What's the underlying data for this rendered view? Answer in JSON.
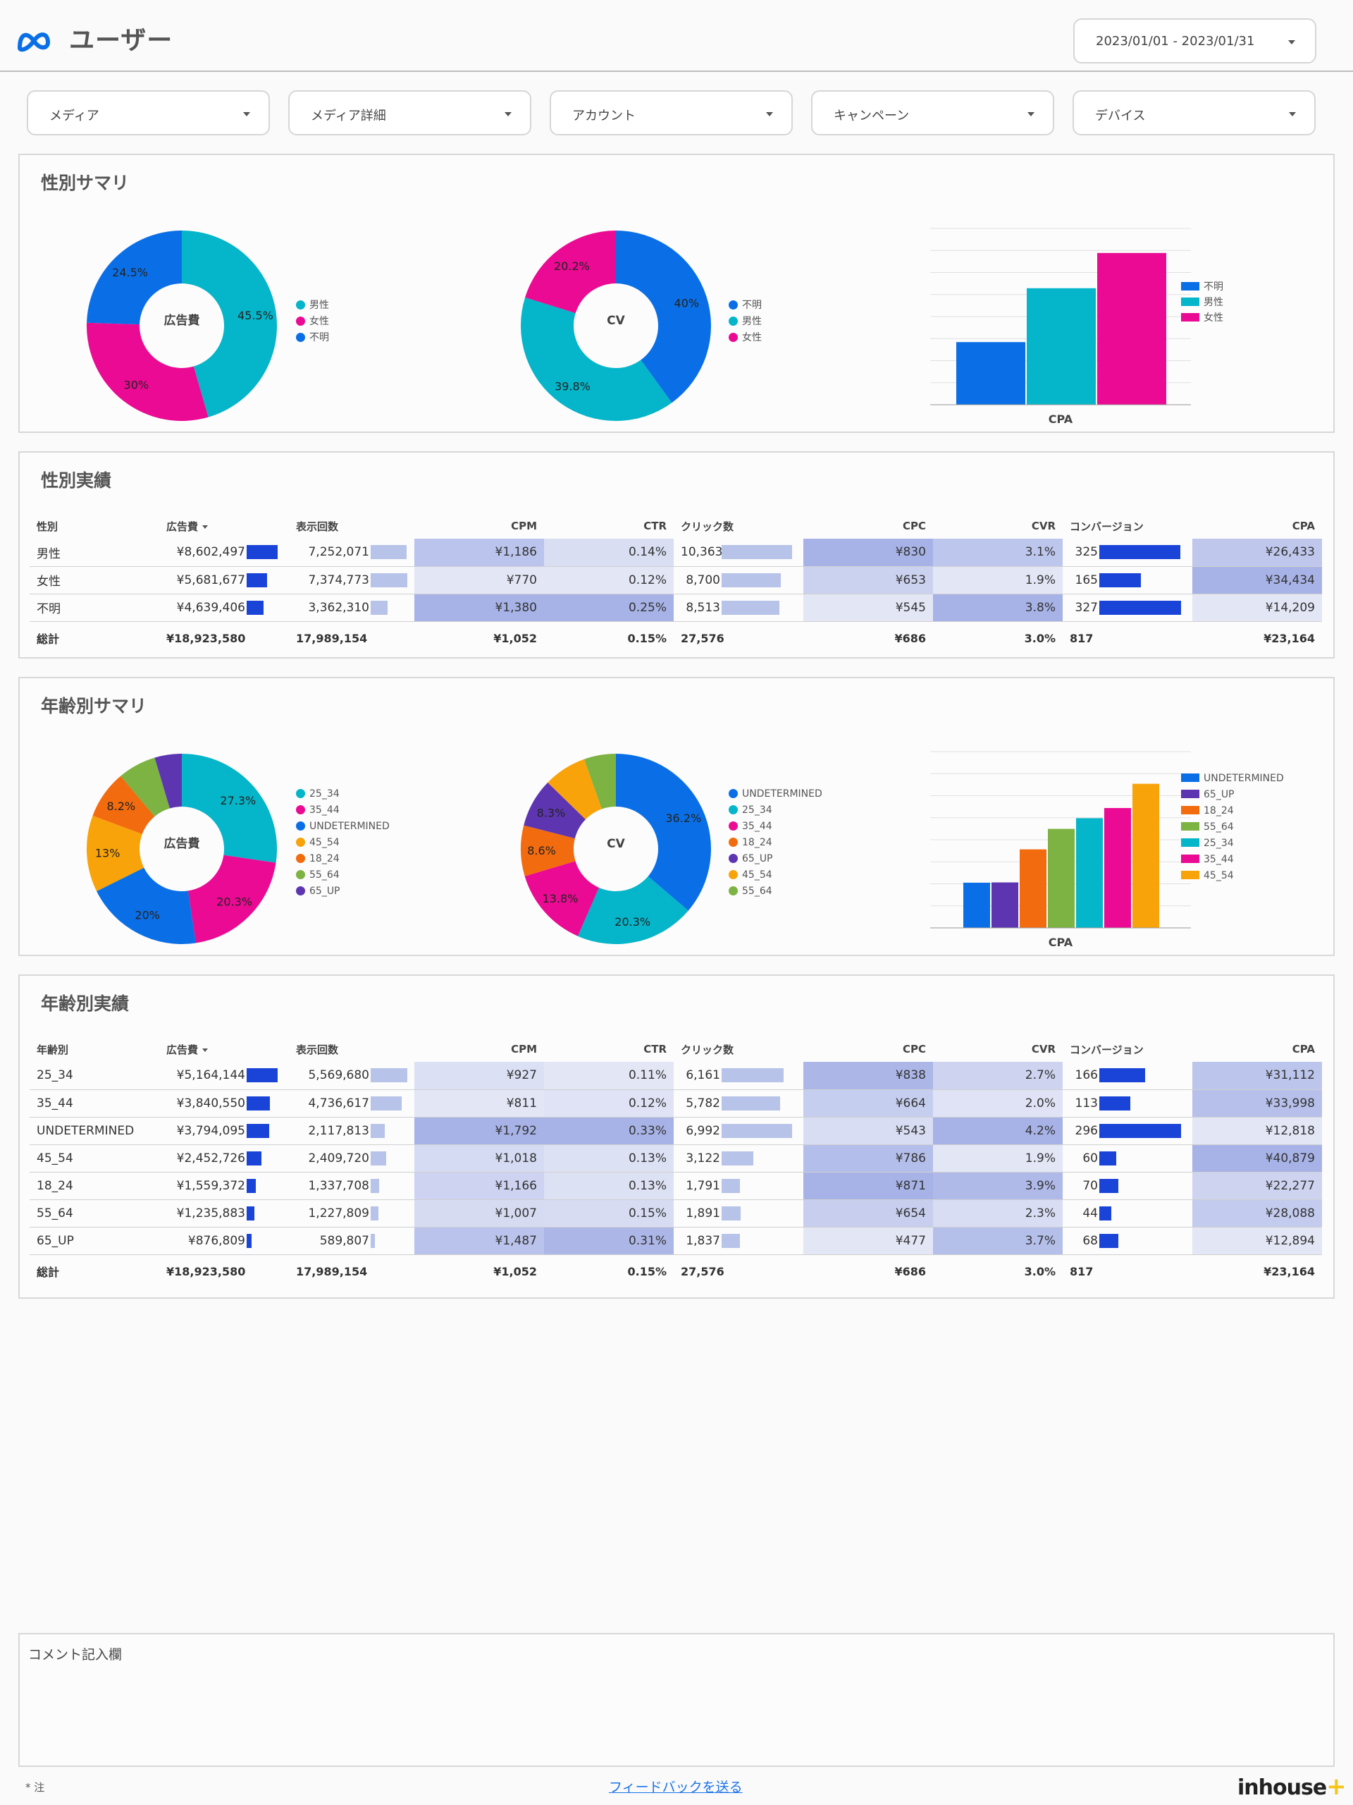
{
  "header": {
    "title": "ユーザー",
    "date_range": "2023/01/01 - 2023/01/31"
  },
  "filters": [
    "メディア",
    "メディア詳細",
    "アカウント",
    "キャンペーン",
    "デバイス"
  ],
  "colors": {
    "blue": "#0a6fe6",
    "teal": "#05b5c9",
    "pink": "#eb0a93",
    "green": "#7cb342",
    "orange": "#f26b0f",
    "purple": "#5e35b1",
    "amber": "#f9a30a",
    "bar_dark": "#1a44d8",
    "bar_light": "#b7c3e8"
  },
  "gender_summary": {
    "title": "性別サマリ",
    "donut1": {
      "center": "広告費",
      "legend": [
        "男性",
        "女性",
        "不明"
      ],
      "labels": [
        "45.5%",
        "30%",
        "24.5%"
      ]
    },
    "donut2": {
      "center": "CV",
      "legend": [
        "不明",
        "男性",
        "女性"
      ],
      "labels": [
        "40%",
        "39.8%",
        "20.2%"
      ]
    },
    "bar": {
      "xlabel": "CPA",
      "legend": [
        "不明",
        "男性",
        "女性"
      ]
    }
  },
  "gender_table": {
    "title": "性別実績",
    "headers": [
      "性別",
      "広告費",
      "表示回数",
      "CPM",
      "CTR",
      "クリック数",
      "CPC",
      "CVR",
      "コンバージョン",
      "CPA"
    ],
    "rows": [
      [
        "男性",
        "¥8,602,497",
        "7,252,071",
        "¥1,186",
        "0.14%",
        "10,363",
        "¥830",
        "3.1%",
        "325",
        "¥26,433"
      ],
      [
        "女性",
        "¥5,681,677",
        "7,374,773",
        "¥770",
        "0.12%",
        "8,700",
        "¥653",
        "1.9%",
        "165",
        "¥34,434"
      ],
      [
        "不明",
        "¥4,639,406",
        "3,362,310",
        "¥1,380",
        "0.25%",
        "8,513",
        "¥545",
        "3.8%",
        "327",
        "¥14,209"
      ]
    ],
    "total": [
      "総計",
      "¥18,923,580",
      "17,989,154",
      "¥1,052",
      "0.15%",
      "27,576",
      "¥686",
      "3.0%",
      "817",
      "¥23,164"
    ]
  },
  "age_summary": {
    "title": "年齢別サマリ",
    "donut1": {
      "center": "広告費",
      "legend": [
        "25_34",
        "35_44",
        "UNDETERMINED",
        "45_54",
        "18_24",
        "55_64",
        "65_UP"
      ],
      "labels": [
        "27.3%",
        "20.3%",
        "20%",
        "13%",
        "8.2%"
      ]
    },
    "donut2": {
      "center": "CV",
      "legend": [
        "UNDETERMINED",
        "25_34",
        "35_44",
        "18_24",
        "65_UP",
        "45_54",
        "55_64"
      ],
      "labels": [
        "36.2%",
        "20.3%",
        "13.8%",
        "8.6%",
        "8.3%"
      ]
    },
    "bar": {
      "xlabel": "CPA",
      "legend": [
        "UNDETERMINED",
        "65_UP",
        "18_24",
        "55_64",
        "25_34",
        "35_44",
        "45_54"
      ]
    }
  },
  "age_table": {
    "title": "年齢別実績",
    "headers": [
      "年齢別",
      "広告費",
      "表示回数",
      "CPM",
      "CTR",
      "クリック数",
      "CPC",
      "CVR",
      "コンバージョン",
      "CPA"
    ],
    "rows": [
      [
        "25_34",
        "¥5,164,144",
        "5,569,680",
        "¥927",
        "0.11%",
        "6,161",
        "¥838",
        "2.7%",
        "166",
        "¥31,112"
      ],
      [
        "35_44",
        "¥3,840,550",
        "4,736,617",
        "¥811",
        "0.12%",
        "5,782",
        "¥664",
        "2.0%",
        "113",
        "¥33,998"
      ],
      [
        "UNDETERMINED",
        "¥3,794,095",
        "2,117,813",
        "¥1,792",
        "0.33%",
        "6,992",
        "¥543",
        "4.2%",
        "296",
        "¥12,818"
      ],
      [
        "45_54",
        "¥2,452,726",
        "2,409,720",
        "¥1,018",
        "0.13%",
        "3,122",
        "¥786",
        "1.9%",
        "60",
        "¥40,879"
      ],
      [
        "18_24",
        "¥1,559,372",
        "1,337,708",
        "¥1,166",
        "0.13%",
        "1,791",
        "¥871",
        "3.9%",
        "70",
        "¥22,277"
      ],
      [
        "55_64",
        "¥1,235,883",
        "1,227,809",
        "¥1,007",
        "0.15%",
        "1,891",
        "¥654",
        "2.3%",
        "44",
        "¥28,088"
      ],
      [
        "65_UP",
        "¥876,809",
        "589,807",
        "¥1,487",
        "0.31%",
        "1,837",
        "¥477",
        "3.7%",
        "68",
        "¥12,894"
      ]
    ],
    "total": [
      "総計",
      "¥18,923,580",
      "17,989,154",
      "¥1,052",
      "0.15%",
      "27,576",
      "¥686",
      "3.0%",
      "817",
      "¥23,164"
    ]
  },
  "chart_data": [
    {
      "type": "pie",
      "center_label": "広告費",
      "categories": [
        "男性",
        "女性",
        "不明"
      ],
      "values": [
        45.5,
        30.0,
        24.5
      ],
      "colors": [
        "#05b5c9",
        "#eb0a93",
        "#0a6fe6"
      ]
    },
    {
      "type": "pie",
      "center_label": "CV",
      "categories": [
        "不明",
        "男性",
        "女性"
      ],
      "values": [
        40.0,
        39.8,
        20.2
      ],
      "colors": [
        "#0a6fe6",
        "#05b5c9",
        "#eb0a93"
      ]
    },
    {
      "type": "bar",
      "xlabel": "CPA",
      "series": [
        {
          "name": "不明",
          "values": [
            14209
          ],
          "color": "#0a6fe6"
        },
        {
          "name": "男性",
          "values": [
            26433
          ],
          "color": "#05b5c9"
        },
        {
          "name": "女性",
          "values": [
            34434
          ],
          "color": "#eb0a93"
        }
      ],
      "ylim": [
        0,
        40000
      ],
      "grid": true,
      "legend": "right"
    },
    {
      "type": "pie",
      "center_label": "広告費",
      "categories": [
        "25_34",
        "35_44",
        "UNDETERMINED",
        "45_54",
        "18_24",
        "55_64",
        "65_UP"
      ],
      "values": [
        27.3,
        20.3,
        20.0,
        13.0,
        8.2,
        6.5,
        4.6
      ],
      "colors": [
        "#05b5c9",
        "#eb0a93",
        "#0a6fe6",
        "#f9a30a",
        "#f26b0f",
        "#7cb342",
        "#5e35b1"
      ]
    },
    {
      "type": "pie",
      "center_label": "CV",
      "categories": [
        "UNDETERMINED",
        "25_34",
        "35_44",
        "18_24",
        "65_UP",
        "45_54",
        "55_64"
      ],
      "values": [
        36.2,
        20.3,
        13.8,
        8.6,
        8.3,
        7.3,
        5.4
      ],
      "colors": [
        "#0a6fe6",
        "#05b5c9",
        "#eb0a93",
        "#f26b0f",
        "#5e35b1",
        "#f9a30a",
        "#7cb342"
      ]
    },
    {
      "type": "bar",
      "xlabel": "CPA",
      "series": [
        {
          "name": "UNDETERMINED",
          "values": [
            12818
          ],
          "color": "#0a6fe6"
        },
        {
          "name": "65_UP",
          "values": [
            12894
          ],
          "color": "#5e35b1"
        },
        {
          "name": "18_24",
          "values": [
            22277
          ],
          "color": "#f26b0f"
        },
        {
          "name": "55_64",
          "values": [
            28088
          ],
          "color": "#7cb342"
        },
        {
          "name": "25_34",
          "values": [
            31112
          ],
          "color": "#05b5c9"
        },
        {
          "name": "35_44",
          "values": [
            33998
          ],
          "color": "#eb0a93"
        },
        {
          "name": "45_54",
          "values": [
            40879
          ],
          "color": "#f9a30a"
        }
      ],
      "ylim": [
        0,
        50000
      ],
      "grid": true,
      "legend": "right"
    }
  ],
  "comment": {
    "label": "コメント記入欄"
  },
  "footer": {
    "note": "* 注",
    "feedback": "フィードバックを送る",
    "brand": "inhouse",
    "brand_plus": "+"
  }
}
